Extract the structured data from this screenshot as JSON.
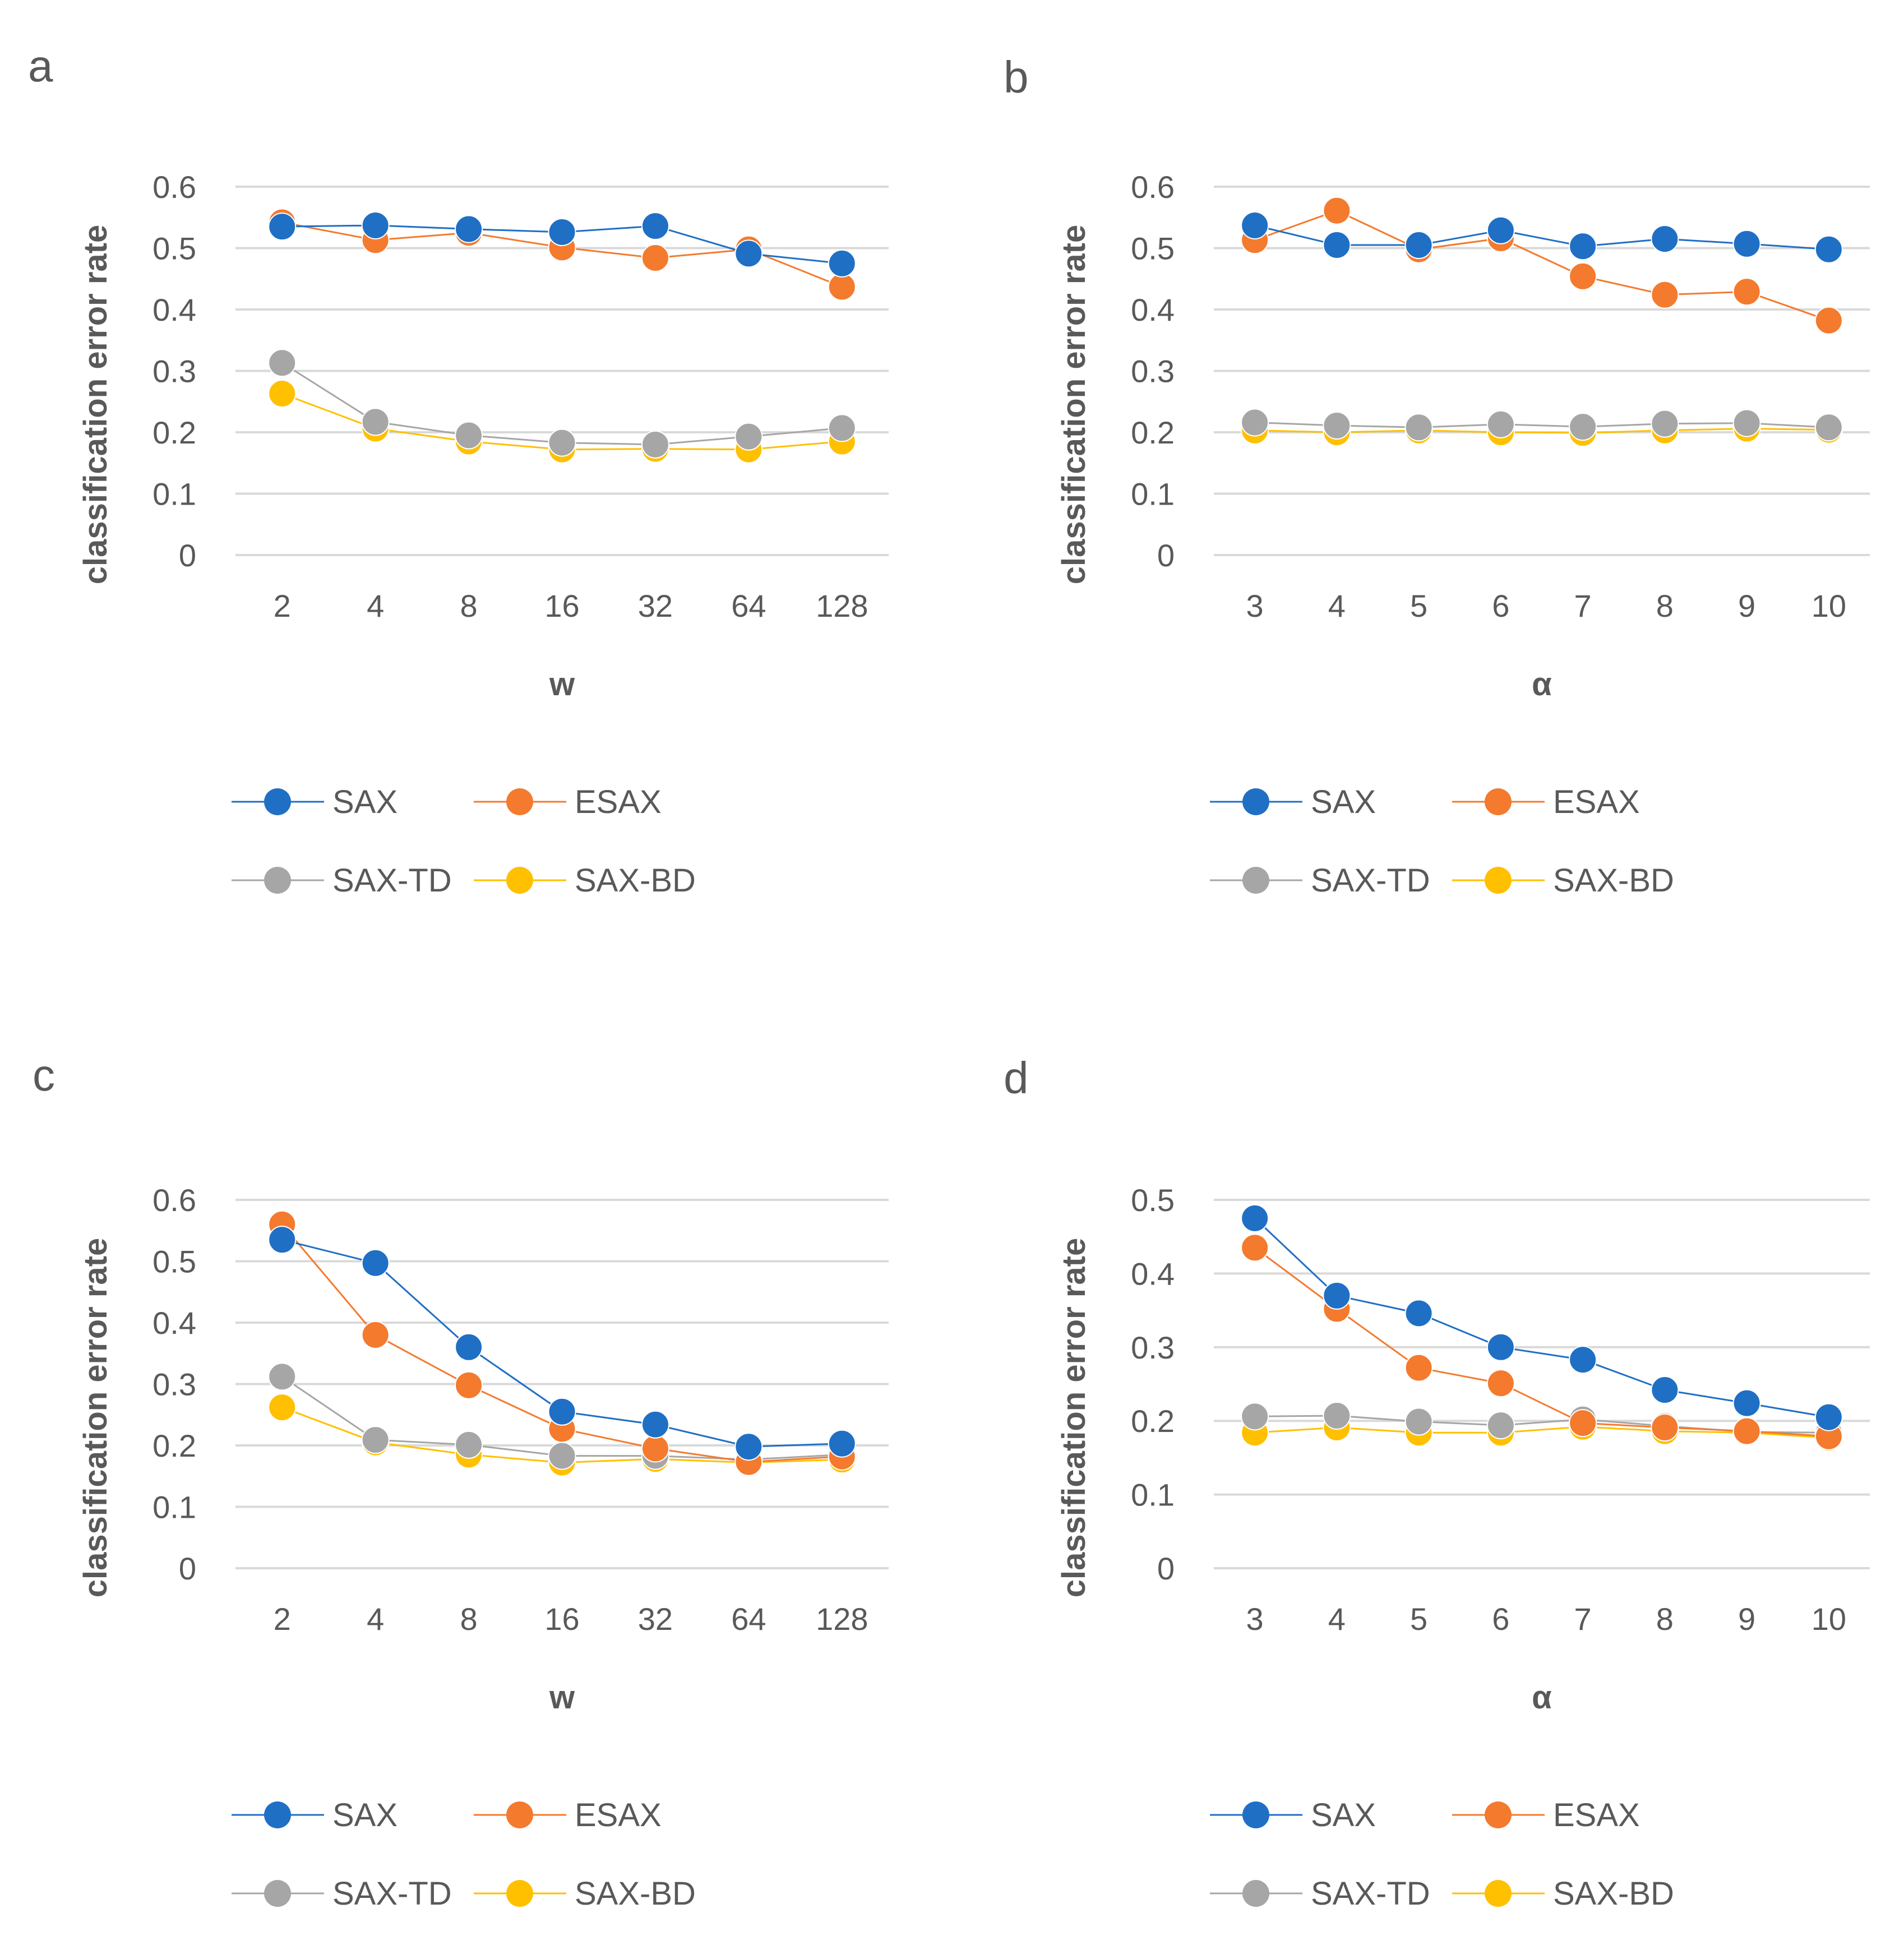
{
  "series_colors": {
    "SAX": "#1f6fc5",
    "ESAX": "#f47a2e",
    "SAX-TD": "#a6a6a6",
    "SAX-BD": "#ffc000"
  },
  "chart_data": [
    {
      "panel": "a",
      "type": "line",
      "categories": [
        "2",
        "4",
        "8",
        "16",
        "32",
        "64",
        "128"
      ],
      "xlabel": "w",
      "ylabel": "classification error rate",
      "ylim": [
        0,
        0.6
      ],
      "yticks": [
        "0",
        "0.1",
        "0.2",
        "0.3",
        "0.4",
        "0.5",
        "0.6"
      ],
      "legend": "bottom",
      "series": [
        {
          "name": "SAX",
          "values": [
            0.535,
            0.537,
            0.531,
            0.526,
            0.536,
            0.491,
            0.475
          ]
        },
        {
          "name": "ESAX",
          "values": [
            0.542,
            0.513,
            0.525,
            0.501,
            0.484,
            0.498,
            0.437
          ]
        },
        {
          "name": "SAX-TD",
          "values": [
            0.313,
            0.217,
            0.195,
            0.183,
            0.18,
            0.193,
            0.207
          ]
        },
        {
          "name": "SAX-BD",
          "values": [
            0.263,
            0.206,
            0.185,
            0.172,
            0.173,
            0.172,
            0.185
          ]
        }
      ]
    },
    {
      "panel": "b",
      "type": "line",
      "categories": [
        "3",
        "4",
        "5",
        "6",
        "7",
        "8",
        "9",
        "10"
      ],
      "xlabel": "α",
      "ylabel": "classification error rate",
      "ylim": [
        0,
        0.6
      ],
      "yticks": [
        "0",
        "0.1",
        "0.2",
        "0.3",
        "0.4",
        "0.5",
        "0.6"
      ],
      "legend": "bottom",
      "series": [
        {
          "name": "SAX",
          "values": [
            0.537,
            0.505,
            0.505,
            0.529,
            0.503,
            0.515,
            0.507,
            0.498
          ]
        },
        {
          "name": "ESAX",
          "values": [
            0.513,
            0.561,
            0.498,
            0.516,
            0.454,
            0.424,
            0.429,
            0.382
          ]
        },
        {
          "name": "SAX-TD",
          "values": [
            0.216,
            0.211,
            0.208,
            0.213,
            0.209,
            0.214,
            0.215,
            0.208
          ]
        },
        {
          "name": "SAX-BD",
          "values": [
            0.203,
            0.2,
            0.203,
            0.2,
            0.199,
            0.203,
            0.206,
            0.204
          ]
        }
      ]
    },
    {
      "panel": "c",
      "type": "line",
      "categories": [
        "2",
        "4",
        "8",
        "16",
        "32",
        "64",
        "128"
      ],
      "xlabel": "w",
      "ylabel": "classification error rate",
      "ylim": [
        0,
        0.6
      ],
      "yticks": [
        "0",
        "0.1",
        "0.2",
        "0.3",
        "0.4",
        "0.5",
        "0.6"
      ],
      "legend": "bottom",
      "series": [
        {
          "name": "SAX",
          "values": [
            0.535,
            0.497,
            0.36,
            0.255,
            0.234,
            0.198,
            0.203
          ]
        },
        {
          "name": "ESAX",
          "values": [
            0.56,
            0.38,
            0.298,
            0.227,
            0.195,
            0.173,
            0.182
          ]
        },
        {
          "name": "SAX-TD",
          "values": [
            0.312,
            0.209,
            0.201,
            0.183,
            0.183,
            0.177,
            0.185
          ]
        },
        {
          "name": "SAX-BD",
          "values": [
            0.262,
            0.205,
            0.185,
            0.172,
            0.178,
            0.172,
            0.177
          ]
        }
      ]
    },
    {
      "panel": "d",
      "type": "line",
      "categories": [
        "3",
        "4",
        "5",
        "6",
        "7",
        "8",
        "9",
        "10"
      ],
      "xlabel": "α",
      "ylabel": "classification error rate",
      "ylim": [
        0,
        0.5
      ],
      "yticks": [
        "0",
        "0.1",
        "0.2",
        "0.3",
        "0.4",
        "0.5"
      ],
      "legend": "bottom",
      "series": [
        {
          "name": "SAX",
          "values": [
            0.475,
            0.37,
            0.346,
            0.3,
            0.283,
            0.242,
            0.224,
            0.205
          ]
        },
        {
          "name": "ESAX",
          "values": [
            0.435,
            0.352,
            0.272,
            0.251,
            0.197,
            0.191,
            0.186,
            0.179
          ]
        },
        {
          "name": "SAX-TD",
          "values": [
            0.206,
            0.207,
            0.199,
            0.194,
            0.202,
            0.193,
            0.185,
            0.184
          ]
        },
        {
          "name": "SAX-BD",
          "values": [
            0.184,
            0.191,
            0.184,
            0.184,
            0.192,
            0.186,
            0.184,
            0.177
          ]
        }
      ]
    }
  ]
}
